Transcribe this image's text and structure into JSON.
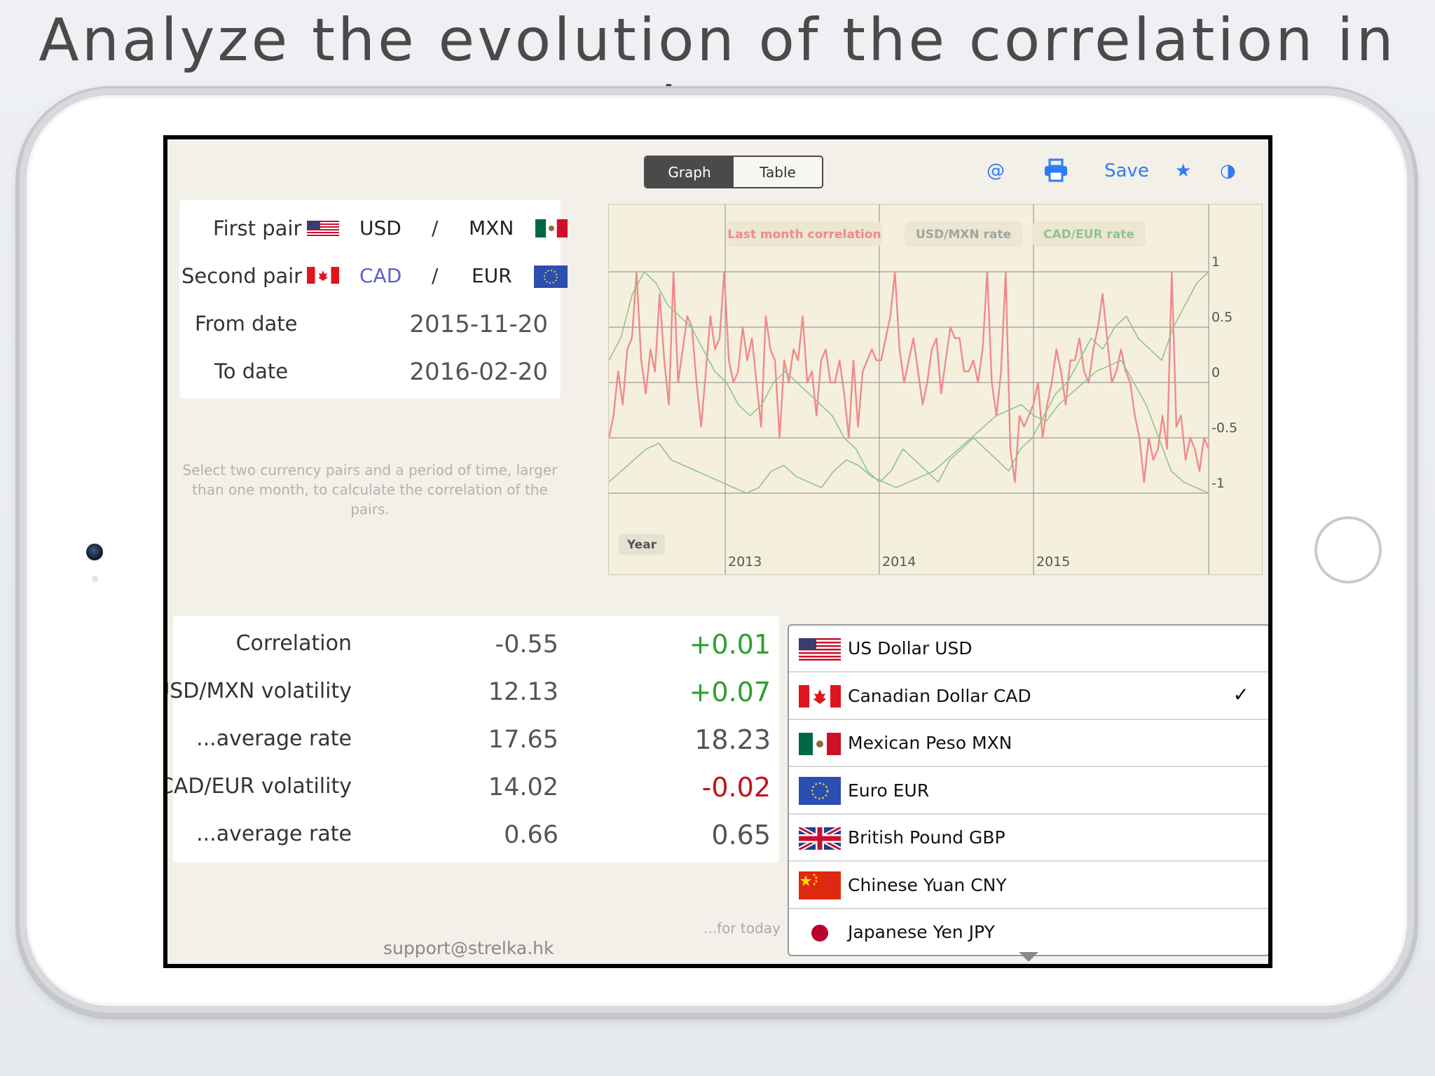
{
  "headline": "Analyze the evolution of the correlation in time.",
  "toolbar": {
    "segments": [
      "Graph",
      "Table"
    ],
    "at_label": "@",
    "save_label": "Save",
    "star_label": "★",
    "contrast_label": "◑"
  },
  "form": {
    "first_pair": {
      "label": "First pair",
      "base": "USD",
      "slash": "/",
      "quote": "MXN"
    },
    "second_pair": {
      "label": "Second pair",
      "base": "CAD",
      "slash": "/",
      "quote": "EUR"
    },
    "from_date": {
      "label": "From date",
      "value": "2015-11-20"
    },
    "to_date": {
      "label": "To date",
      "value": "2016-02-20"
    },
    "hint": "Select two currency pairs and a period of time, larger than one month, to calculate the correlation of the pairs."
  },
  "chart_data": {
    "type": "line",
    "legend": [
      "Last month correlation",
      "USD/MXN rate",
      "CAD/EUR rate"
    ],
    "colors": {
      "correlation": "#f08a8a",
      "usdmxn": "#8fc48f",
      "cadeur": "#8fc48f"
    },
    "x_axis_label": "Year",
    "x_ticks": [
      "2013",
      "2014",
      "2015"
    ],
    "y_ticks": [
      "1",
      "0.5",
      "0",
      "-0.5",
      "-1"
    ],
    "ylim": [
      -1,
      1
    ],
    "series": [
      {
        "name": "Last month correlation",
        "values": [
          -0.5,
          -0.3,
          0.1,
          -0.2,
          0.3,
          0.4,
          1.0,
          0.2,
          -0.1,
          0.3,
          0.1,
          0.8,
          0.2,
          -0.2,
          1.0,
          0.0,
          0.3,
          0.6,
          0.5,
          0.0,
          -0.4,
          0.1,
          0.6,
          0.3,
          0.4,
          1.0,
          0.2,
          0.0,
          0.1,
          0.5,
          0.2,
          0.4,
          0.0,
          -0.4,
          0.6,
          0.3,
          0.2,
          -0.5,
          0.2,
          0.0,
          0.3,
          0.2,
          0.6,
          0.0,
          0.1,
          -0.3,
          0.2,
          0.3,
          0.0,
          0.0,
          0.2,
          -0.1,
          -0.5,
          0.2,
          -0.4,
          0.1,
          0.2,
          0.3,
          0.2,
          0.2,
          0.4,
          0.6,
          1.0,
          0.3,
          0.0,
          0.2,
          0.4,
          0.1,
          -0.2,
          0.0,
          0.3,
          0.4,
          -0.1,
          0.2,
          0.5,
          0.4,
          0.4,
          0.1,
          0.1,
          0.2,
          0.0,
          0.3,
          1.0,
          0.0,
          -0.3,
          0.1,
          1.0,
          -0.6,
          -0.9,
          -0.3,
          -0.4,
          -0.3,
          -0.2,
          0.0,
          -0.5,
          -0.2,
          0.0,
          0.3,
          0.1,
          -0.2,
          0.2,
          0.2,
          0.4,
          0.1,
          0.0,
          0.3,
          0.5,
          0.8,
          0.4,
          0.0,
          0.1,
          0.3,
          0.1,
          0.0,
          -0.3,
          -0.5,
          -0.9,
          -0.5,
          -0.7,
          -0.6,
          -0.3,
          -0.6,
          1.0,
          -0.4,
          -0.3,
          -0.7,
          -0.5,
          -0.6,
          -0.8,
          -0.5,
          -0.6
        ]
      },
      {
        "name": "USD/MXN rate",
        "values": [
          0.2,
          0.4,
          0.8,
          1.0,
          0.9,
          0.7,
          0.6,
          0.5,
          0.3,
          0.1,
          0.0,
          -0.2,
          -0.3,
          -0.2,
          0.0,
          0.1,
          0.0,
          -0.1,
          -0.2,
          -0.3,
          -0.5,
          -0.6,
          -0.8,
          -0.9,
          -0.8,
          -0.6,
          -0.7,
          -0.8,
          -0.9,
          -0.7,
          -0.6,
          -0.5,
          -0.6,
          -0.7,
          -0.8,
          -0.6,
          -0.5,
          -0.3,
          -0.1,
          0.0,
          0.2,
          0.4,
          0.3,
          0.5,
          0.6,
          0.4,
          0.3,
          0.2,
          0.5,
          0.7,
          0.9,
          1.0
        ]
      },
      {
        "name": "CAD/EUR rate",
        "values": [
          -0.9,
          -0.8,
          -0.7,
          -0.6,
          -0.55,
          -0.7,
          -0.75,
          -0.8,
          -0.85,
          -0.9,
          -0.95,
          -1.0,
          -0.95,
          -0.8,
          -0.75,
          -0.85,
          -0.9,
          -0.95,
          -0.8,
          -0.7,
          -0.75,
          -0.85,
          -0.9,
          -0.95,
          -0.9,
          -0.85,
          -0.8,
          -0.7,
          -0.6,
          -0.5,
          -0.4,
          -0.3,
          -0.25,
          -0.2,
          -0.3,
          -0.35,
          -0.2,
          -0.1,
          0.0,
          0.1,
          0.15,
          0.2,
          0.0,
          -0.2,
          -0.5,
          -0.8,
          -0.9,
          -0.95,
          -1.0
        ]
      }
    ]
  },
  "stats": [
    {
      "label": "Correlation",
      "value": "-0.55",
      "delta": "+0.01",
      "delta_color": "#2ca02c"
    },
    {
      "label": "USD/MXN volatility",
      "value": "12.13",
      "delta": "+0.07",
      "delta_color": "#2ca02c"
    },
    {
      "label": "...average rate",
      "value": "17.65",
      "delta": "18.23",
      "delta_color": "#555555"
    },
    {
      "label": "CAD/EUR volatility",
      "value": "14.02",
      "delta": "-0.02",
      "delta_color": "#c0141c"
    },
    {
      "label": "...average rate",
      "value": "0.66",
      "delta": "0.65",
      "delta_color": "#555555"
    }
  ],
  "today_note": "...for today",
  "support_email": "support@strelka.hk",
  "currencies": [
    {
      "name": "US Dollar USD",
      "flag": "us-flag-icon",
      "checked": false
    },
    {
      "name": "Canadian Dollar CAD",
      "flag": "ca-flag-icon",
      "checked": true
    },
    {
      "name": "Mexican Peso MXN",
      "flag": "mx-flag-icon",
      "checked": false
    },
    {
      "name": "Euro EUR",
      "flag": "eu-flag-icon",
      "checked": false
    },
    {
      "name": "British Pound GBP",
      "flag": "gb-flag-icon",
      "checked": false
    },
    {
      "name": "Chinese Yuan CNY",
      "flag": "cn-flag-icon",
      "checked": false
    },
    {
      "name": "Japanese Yen JPY",
      "flag": "jp-flag-icon",
      "checked": false
    }
  ],
  "check_mark": "✓"
}
